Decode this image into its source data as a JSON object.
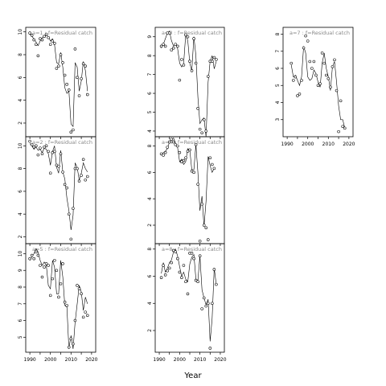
{
  "figure": {
    "xlabel": "Year"
  },
  "chart_data": [
    {
      "type": "line",
      "title": "a=1 : f=Residual catch",
      "xlim": [
        1988,
        2022
      ],
      "ylim": [
        0.8,
        10.4
      ],
      "xticks": [
        1990,
        1995,
        2000,
        2005,
        2010,
        2015,
        2020
      ],
      "xtick_labels": [],
      "yticks": [
        2,
        4,
        6,
        8,
        10
      ],
      "series": [
        {
          "kind": "fitted",
          "x": [
            1990,
            1991,
            1992,
            1993,
            1994,
            1995,
            1996,
            1997,
            1998,
            1999,
            2000,
            2001,
            2002,
            2003,
            2004,
            2005,
            2006,
            2007,
            2008,
            2009,
            2010,
            2011,
            2012,
            2013,
            2014,
            2015,
            2016,
            2017,
            2018
          ],
          "y": [
            9.8,
            9.6,
            9.4,
            9.1,
            8.8,
            9.2,
            9.5,
            9.6,
            9.7,
            9.6,
            9.2,
            9.4,
            8.9,
            7.3,
            7.2,
            8.2,
            6.9,
            5.1,
            4.6,
            4.8,
            1.9,
            1.7,
            7.3,
            6.9,
            4.8,
            5.7,
            7.4,
            6.6,
            4.8
          ]
        },
        {
          "kind": "observed",
          "x": [
            1990,
            1991,
            1992,
            1993,
            1994,
            1995,
            1996,
            1997,
            1998,
            1999,
            2000,
            2001,
            2002,
            2003,
            2004,
            2005,
            2006,
            2007,
            2008,
            2009,
            2010,
            2011,
            2012,
            2013,
            2014,
            2015,
            2016,
            2017,
            2018
          ],
          "y": [
            9.9,
            9.7,
            9.3,
            8.9,
            7.9,
            9.4,
            9.3,
            9.6,
            9.8,
            9.5,
            8.9,
            9.2,
            9.0,
            6.8,
            7.0,
            8.0,
            7.3,
            6.2,
            5.4,
            4.9,
            1.2,
            1.4,
            8.5,
            6.0,
            4.4,
            5.9,
            7.2,
            7.0,
            4.5
          ]
        }
      ]
    },
    {
      "type": "line",
      "title": "a=3 : f=Residual catch",
      "xlim": [
        1988,
        2022
      ],
      "ylim": [
        3.7,
        9.5
      ],
      "xticks": [
        1990,
        1995,
        2000,
        2005,
        2010,
        2015,
        2020
      ],
      "xtick_labels": [],
      "yticks": [
        4,
        5,
        6,
        7,
        8,
        9
      ],
      "series": [
        {
          "kind": "fitted",
          "x": [
            1991,
            1992,
            1993,
            1994,
            1995,
            1996,
            1997,
            1998,
            1999,
            2000,
            2001,
            2002,
            2003,
            2004,
            2005,
            2006,
            2007,
            2008,
            2009,
            2010,
            2011,
            2012,
            2013,
            2014,
            2015,
            2016,
            2017,
            2018
          ],
          "y": [
            8.4,
            8.6,
            8.9,
            9.2,
            9.3,
            8.8,
            8.5,
            8.6,
            8.4,
            7.6,
            7.4,
            7.6,
            9.1,
            8.8,
            7.6,
            7.2,
            9.0,
            8.0,
            5.8,
            4.4,
            4.6,
            4.7,
            3.7,
            6.6,
            7.7,
            8.0,
            7.3,
            7.7
          ]
        },
        {
          "kind": "observed",
          "x": [
            1991,
            1992,
            1993,
            1994,
            1995,
            1996,
            1997,
            1998,
            1999,
            2000,
            2001,
            2002,
            2003,
            2004,
            2005,
            2006,
            2007,
            2008,
            2009,
            2010,
            2011,
            2012,
            2013,
            2014,
            2015,
            2016,
            2017,
            2018
          ],
          "y": [
            8.5,
            8.6,
            8.5,
            9.2,
            9.2,
            8.3,
            8.4,
            8.6,
            8.5,
            6.7,
            7.8,
            7.5,
            9.1,
            9.0,
            7.7,
            7.2,
            8.9,
            7.6,
            5.2,
            4.1,
            3.9,
            4.6,
            4.0,
            6.9,
            7.7,
            7.7,
            7.9,
            7.8
          ]
        }
      ]
    },
    {
      "type": "line",
      "title": "a=7 : f=Residual catch",
      "xlim": [
        1988,
        2022
      ],
      "ylim": [
        2.0,
        8.4
      ],
      "xticks": [
        1990,
        1995,
        2000,
        2005,
        2010,
        2015,
        2020
      ],
      "xtick_labels": [
        "1990",
        "2000",
        "2010",
        "2020"
      ],
      "yticks": [
        3,
        4,
        5,
        6,
        7,
        8
      ],
      "series": [
        {
          "kind": "fitted",
          "x": [
            1992,
            1993,
            1994,
            1995,
            1996,
            1997,
            1998,
            1999,
            2000,
            2001,
            2002,
            2003,
            2004,
            2005,
            2006,
            2007,
            2008,
            2009,
            2010,
            2011,
            2012,
            2013,
            2014,
            2015,
            2016,
            2017,
            2018
          ],
          "y": [
            6.2,
            5.5,
            5.6,
            5.3,
            5.0,
            5.5,
            7.3,
            6.9,
            5.5,
            5.3,
            5.4,
            5.9,
            5.7,
            5.2,
            4.9,
            6.3,
            6.9,
            6.0,
            5.5,
            4.7,
            6.1,
            6.4,
            5.2,
            3.8,
            3.0,
            3.0,
            2.5
          ]
        },
        {
          "kind": "observed",
          "x": [
            1992,
            1993,
            1994,
            1995,
            1996,
            1997,
            1998,
            1999,
            2000,
            2001,
            2002,
            2003,
            2004,
            2005,
            2006,
            2007,
            2008,
            2009,
            2010,
            2011,
            2012,
            2013,
            2014,
            2015,
            2016,
            2017,
            2018
          ],
          "y": [
            6.3,
            5.3,
            5.5,
            4.4,
            4.5,
            5.3,
            7.2,
            7.9,
            7.6,
            6.4,
            6.0,
            6.4,
            5.6,
            5.0,
            5.1,
            6.9,
            6.3,
            5.6,
            5.4,
            4.9,
            6.1,
            6.5,
            4.7,
            2.3,
            4.1,
            2.6,
            2.5
          ]
        }
      ]
    },
    {
      "type": "line",
      "title": "a=2 : f=Residual catch",
      "xlim": [
        1988,
        2022
      ],
      "ylim": [
        1.4,
        10.8
      ],
      "xticks": [
        1990,
        1995,
        2000,
        2005,
        2010,
        2015,
        2020
      ],
      "xtick_labels": [],
      "yticks": [
        2,
        4,
        6,
        8,
        10
      ],
      "series": [
        {
          "kind": "fitted",
          "x": [
            1990,
            1991,
            1992,
            1993,
            1994,
            1995,
            1996,
            1997,
            1998,
            1999,
            2000,
            2001,
            2002,
            2003,
            2004,
            2005,
            2006,
            2007,
            2008,
            2009,
            2010,
            2011,
            2012,
            2013,
            2014,
            2015,
            2016,
            2017,
            2018
          ],
          "y": [
            10.2,
            10.0,
            9.7,
            9.9,
            9.6,
            9.7,
            9.4,
            9.8,
            9.7,
            9.3,
            8.3,
            9.5,
            10.0,
            8.1,
            7.6,
            9.6,
            7.7,
            7.1,
            5.4,
            4.3,
            2.6,
            3.9,
            8.5,
            8.1,
            7.0,
            7.6,
            8.5,
            8.0,
            7.7
          ]
        },
        {
          "kind": "observed",
          "x": [
            1990,
            1991,
            1992,
            1993,
            1994,
            1995,
            1996,
            1997,
            1998,
            1999,
            2000,
            2001,
            2002,
            2003,
            2004,
            2005,
            2006,
            2007,
            2008,
            2009,
            2010,
            2011,
            2012,
            2013,
            2014,
            2015,
            2016,
            2017,
            2018
          ],
          "y": [
            10.4,
            10.1,
            9.9,
            10.0,
            9.2,
            9.8,
            9.3,
            9.9,
            10.0,
            9.5,
            7.6,
            9.4,
            9.5,
            8.3,
            8.2,
            9.3,
            7.7,
            6.6,
            6.3,
            4.0,
            1.8,
            4.5,
            8.0,
            8.0,
            6.9,
            7.4,
            8.8,
            7.0,
            7.3
          ]
        }
      ]
    },
    {
      "type": "line",
      "title": "a=4 : f=Residual catch",
      "xlim": [
        1988,
        2022
      ],
      "ylim": [
        0.6,
        8.7
      ],
      "xticks": [
        1990,
        1995,
        2000,
        2005,
        2010,
        2015,
        2020
      ],
      "xtick_labels": [],
      "yticks": [
        2,
        4,
        6,
        8
      ],
      "series": [
        {
          "kind": "fitted",
          "x": [
            1991,
            1992,
            1993,
            1994,
            1995,
            1996,
            1997,
            1998,
            1999,
            2000,
            2001,
            2002,
            2003,
            2004,
            2005,
            2006,
            2007,
            2008,
            2009,
            2010,
            2011,
            2012,
            2013,
            2014,
            2015,
            2016,
            2017
          ],
          "y": [
            7.3,
            7.5,
            7.6,
            7.8,
            8.3,
            8.5,
            8.6,
            8.2,
            7.9,
            6.8,
            7.0,
            6.6,
            6.8,
            7.8,
            7.7,
            6.2,
            6.2,
            8.1,
            6.0,
            3.1,
            4.2,
            1.9,
            3.8,
            7.2,
            6.5,
            6.0,
            6.3
          ]
        },
        {
          "kind": "observed",
          "x": [
            1991,
            1992,
            1993,
            1994,
            1995,
            1996,
            1997,
            1998,
            1999,
            2000,
            2001,
            2002,
            2003,
            2004,
            2005,
            2006,
            2007,
            2008,
            2009,
            2010,
            2011,
            2012,
            2013,
            2014,
            2015,
            2016,
            2017
          ],
          "y": [
            7.4,
            7.3,
            7.5,
            7.9,
            8.3,
            8.5,
            8.3,
            8.1,
            8.0,
            7.5,
            6.8,
            6.9,
            7.1,
            7.6,
            7.7,
            6.1,
            6.0,
            8.1,
            5.1,
            0.8,
            3.6,
            2.0,
            1.8,
            0.9,
            7.1,
            6.6,
            6.3
          ]
        }
      ]
    },
    {
      "type": "line",
      "title": "a=8 : f=Residual catch",
      "xlim": [
        1988,
        2022
      ],
      "ylim": [
        0.4,
        8.4
      ],
      "xticks": [
        1990,
        1995,
        2000,
        2005,
        2010,
        2015,
        2020
      ],
      "xtick_labels": [
        "1990",
        "2000",
        "2010",
        "2020"
      ],
      "yticks": [
        2,
        4,
        6,
        8
      ],
      "series": [
        {
          "kind": "fitted",
          "x": [
            1991,
            1992,
            1993,
            1994,
            1995,
            1996,
            1997,
            1998,
            1999,
            2000,
            2001,
            2002,
            2003,
            2004,
            2005,
            2006,
            2007,
            2008,
            2009,
            2010,
            2011,
            2012,
            2013,
            2014,
            2015,
            2016,
            2017,
            2018
          ],
          "y": [
            6.2,
            7.0,
            6.3,
            6.6,
            7.0,
            7.2,
            7.8,
            8.0,
            7.5,
            6.7,
            6.0,
            6.3,
            5.8,
            5.6,
            6.9,
            7.4,
            7.6,
            5.8,
            5.7,
            7.5,
            5.0,
            4.4,
            3.9,
            4.3,
            1.2,
            2.9,
            6.6,
            5.4
          ]
        },
        {
          "kind": "observed",
          "x": [
            1991,
            1992,
            1993,
            1994,
            1995,
            1996,
            1997,
            1998,
            1999,
            2000,
            2001,
            2002,
            2003,
            2004,
            2005,
            2006,
            2007,
            2008,
            2009,
            2010,
            2011,
            2012,
            2013,
            2014,
            2015,
            2016,
            2017,
            2018
          ],
          "y": [
            5.9,
            6.8,
            6.1,
            6.4,
            6.6,
            7.0,
            7.9,
            7.8,
            7.3,
            6.3,
            5.9,
            6.8,
            5.6,
            4.7,
            7.7,
            7.7,
            7.3,
            5.7,
            5.6,
            7.5,
            3.6,
            4.4,
            3.8,
            4.0,
            0.7,
            4.0,
            6.5,
            5.4
          ]
        }
      ]
    },
    {
      "type": "line",
      "title": "a=5 : f=Residual catch",
      "xlim": [
        1988,
        2022
      ],
      "ylim": [
        4.1,
        10.6
      ],
      "xticks": [
        1990,
        1995,
        2000,
        2005,
        2010,
        2015,
        2020
      ],
      "xtick_labels": [
        "1990",
        "2000",
        "2010",
        "2020"
      ],
      "yticks": [
        5,
        6,
        7,
        8,
        9,
        10
      ],
      "series": [
        {
          "kind": "fitted",
          "x": [
            1990,
            1991,
            1992,
            1993,
            1994,
            1995,
            1996,
            1997,
            1998,
            1999,
            2000,
            2001,
            2002,
            2003,
            2004,
            2005,
            2006,
            2007,
            2008,
            2009,
            2010,
            2011,
            2012,
            2013,
            2014,
            2015,
            2016,
            2017,
            2018
          ],
          "y": [
            9.6,
            9.8,
            10.0,
            10.3,
            10.1,
            9.6,
            9.3,
            9.5,
            9.3,
            8.1,
            7.9,
            9.6,
            9.2,
            7.6,
            7.6,
            9.6,
            8.6,
            6.9,
            6.8,
            4.3,
            5.1,
            4.3,
            5.9,
            7.0,
            8.1,
            7.7,
            6.6,
            7.4,
            7.0
          ]
        },
        {
          "kind": "observed",
          "x": [
            1990,
            1991,
            1992,
            1993,
            1994,
            1995,
            1996,
            1997,
            1998,
            1999,
            2000,
            2001,
            2002,
            2003,
            2004,
            2005,
            2006,
            2007,
            2008,
            2009,
            2010,
            2011,
            2012,
            2013,
            2014,
            2015,
            2016,
            2017,
            2018
          ],
          "y": [
            9.7,
            9.9,
            9.7,
            10.1,
            9.9,
            9.3,
            8.6,
            9.2,
            9.4,
            9.3,
            7.5,
            8.5,
            9.6,
            9.0,
            7.4,
            8.2,
            9.4,
            7.1,
            6.9,
            4.4,
            4.9,
            4.6,
            6.0,
            8.1,
            7.9,
            7.6,
            6.2,
            6.5,
            6.3
          ]
        }
      ]
    }
  ]
}
